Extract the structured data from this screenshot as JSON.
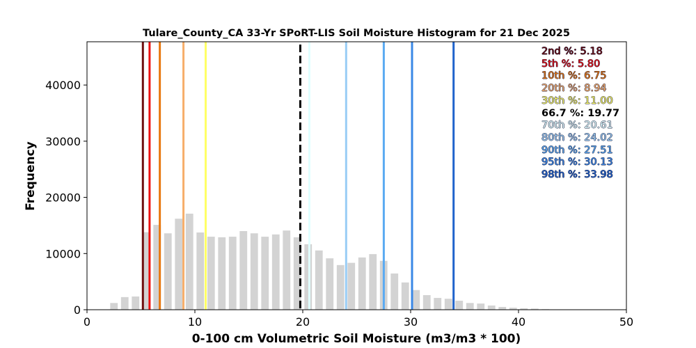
{
  "chart_data": {
    "type": "bar",
    "title": "Tulare_County_CA 33-Yr SPoRT-LIS Soil Moisture Histogram for 21 Dec 2025",
    "xlabel": "0-100 cm Volumetric Soil Moisture (m3/m3 * 100)",
    "ylabel": "Frequency",
    "xlim": [
      0,
      50
    ],
    "ylim": [
      0,
      47700
    ],
    "xticks": [
      0,
      10,
      20,
      30,
      40,
      50
    ],
    "yticks": [
      0,
      10000,
      20000,
      30000,
      40000
    ],
    "grid": false,
    "bar_color": "#d3d3d3",
    "bins": {
      "centers": [
        2.5,
        3.5,
        4.5,
        5.5,
        6.5,
        7.5,
        8.5,
        9.5,
        10.5,
        11.5,
        12.5,
        13.5,
        14.5,
        15.5,
        16.5,
        17.5,
        18.5,
        19.5,
        20.5,
        21.5,
        22.5,
        23.5,
        24.5,
        25.5,
        26.5,
        27.5,
        28.5,
        29.5,
        30.5,
        31.5,
        32.5,
        33.5,
        34.5,
        35.5,
        36.5,
        37.5,
        38.5,
        39.5,
        40.5,
        41.5,
        42.5
      ],
      "values": [
        1200,
        2250,
        2350,
        13800,
        15100,
        13600,
        16200,
        17100,
        13750,
        13000,
        12900,
        13000,
        14000,
        13600,
        13000,
        13400,
        14100,
        12900,
        11650,
        10550,
        9150,
        7950,
        8350,
        9300,
        9900,
        8700,
        6450,
        4850,
        3500,
        2600,
        2100,
        1950,
        1600,
        1200,
        1100,
        750,
        500,
        350,
        250,
        200,
        100
      ]
    },
    "percentiles": [
      {
        "label": "2nd %: 5.18",
        "value": 5.18,
        "color": "#6e1010",
        "dashed": false
      },
      {
        "label": "5th %: 5.80",
        "value": 5.8,
        "color": "#ee1111",
        "dashed": false
      },
      {
        "label": "10th %: 6.75",
        "value": 6.75,
        "color": "#e8780f",
        "dashed": false
      },
      {
        "label": "20th %: 8.94",
        "value": 8.94,
        "color": "#f7ae6a",
        "dashed": false
      },
      {
        "label": "30th %: 11.00",
        "value": 11.0,
        "color": "#ffff66",
        "dashed": false
      },
      {
        "label": "66.7 %: 19.77",
        "value": 19.77,
        "color": "#000000",
        "dashed": true
      },
      {
        "label": "70th %: 20.61",
        "value": 20.61,
        "color": "#e0ffff",
        "dashed": false
      },
      {
        "label": "80th %: 24.02",
        "value": 24.02,
        "color": "#99cdf5",
        "dashed": false
      },
      {
        "label": "90th %: 27.51",
        "value": 27.51,
        "color": "#5aaaf2",
        "dashed": false
      },
      {
        "label": "95th %: 30.13",
        "value": 30.13,
        "color": "#3a88e6",
        "dashed": false
      },
      {
        "label": "98th %: 33.98",
        "value": 33.98,
        "color": "#1f63cc",
        "dashed": false
      }
    ],
    "legend_placement": "top-right"
  }
}
